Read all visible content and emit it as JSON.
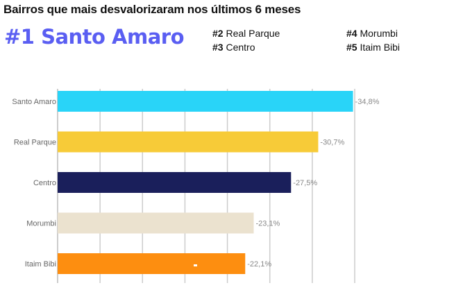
{
  "header": {
    "title": "Bairros que mais desvalorizaram nos últimos 6 meses",
    "top1": "#1 Santo Amaro",
    "ranks": [
      {
        "num": "#2",
        "name": "Real Parque"
      },
      {
        "num": "#3",
        "name": "Centro"
      },
      {
        "num": "#4",
        "name": "Morumbi"
      },
      {
        "num": "#5",
        "name": "Itaim Bibi"
      }
    ]
  },
  "colors": {
    "accent": "#5a5ef2",
    "grid": "#cccccc"
  },
  "chart_data": {
    "type": "bar",
    "orientation": "horizontal",
    "title": "Bairros que mais desvalorizaram nos últimos 6 meses",
    "xlabel": "",
    "ylabel": "",
    "categories": [
      "Santo Amaro",
      "Real Parque",
      "Centro",
      "Morumbi",
      "Itaim Bibi"
    ],
    "values": [
      -34.8,
      -30.7,
      -27.5,
      -23.1,
      -22.1
    ],
    "labels": [
      "-34,8%",
      "-30,7%",
      "-27,5%",
      "-23,1%",
      "-22,1%"
    ],
    "bar_colors": [
      "#29d4f8",
      "#f7cb38",
      "#1a1f5b",
      "#ebe2cf",
      "#fd8e10"
    ],
    "xlim_abs": [
      0,
      35
    ],
    "grid_step": 5,
    "grid": true,
    "legend": "none"
  }
}
